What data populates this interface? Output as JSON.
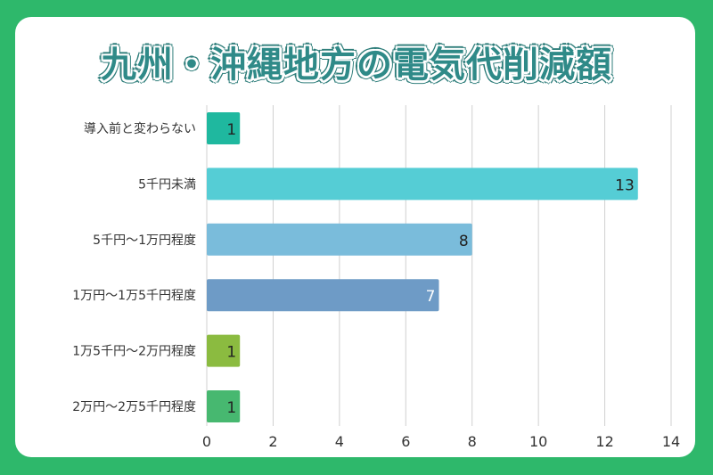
{
  "chart_data": {
    "type": "bar",
    "orientation": "horizontal",
    "title": "九州・沖縄地方の電気代削減額",
    "categories": [
      "導入前と変わらない",
      "5千円未満",
      "5千円～1万円程度",
      "1万円～1万5千円程度",
      "1万5千円～2万円程度",
      "2万円～2万5千円程度"
    ],
    "values": [
      1,
      13,
      8,
      7,
      1,
      1
    ],
    "colors": [
      "#1fb89f",
      "#55cdd5",
      "#7abcdb",
      "#6e9bc6",
      "#8bbb40",
      "#47b870"
    ],
    "label_colors": [
      "#222222",
      "#222222",
      "#222222",
      "#ffffff",
      "#222222",
      "#222222"
    ],
    "xlim": [
      0,
      14
    ],
    "xticks": [
      "0",
      "2",
      "4",
      "6",
      "8",
      "10",
      "12",
      "14"
    ],
    "grid": true,
    "background": "#2eb86b",
    "title_color": "#2f8a88"
  }
}
